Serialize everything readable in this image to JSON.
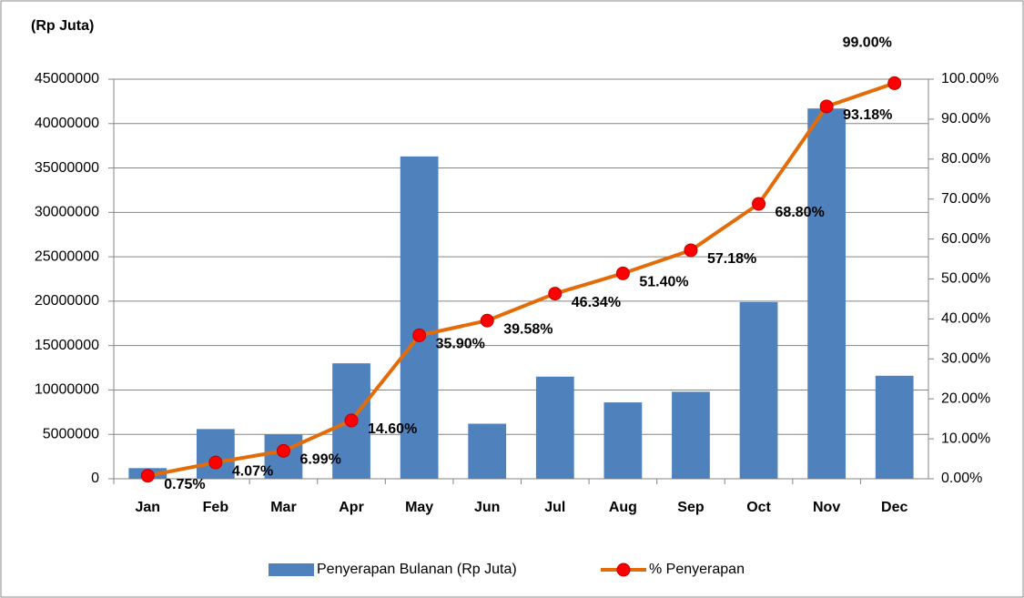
{
  "chart_data": {
    "type": "bar",
    "title": "(Rp Juta)",
    "categories": [
      "Jan",
      "Feb",
      "Mar",
      "Apr",
      "May",
      "Jun",
      "Jul",
      "Aug",
      "Sep",
      "Oct",
      "Nov",
      "Dec"
    ],
    "series": [
      {
        "name": "Penyerapan Bulanan (Rp Juta)",
        "type": "bar",
        "color": "#4f81bd",
        "values": [
          1200000,
          5600000,
          5000000,
          13000000,
          36300000,
          6200000,
          11500000,
          8600000,
          9800000,
          19900000,
          41700000,
          11600000
        ]
      },
      {
        "name": "% Penyerapan",
        "type": "line",
        "axis": "y2",
        "color": "#e36c09",
        "marker_color": "#ff0000",
        "values": [
          0.75,
          4.07,
          6.99,
          14.6,
          35.9,
          39.58,
          46.34,
          51.4,
          57.18,
          68.8,
          93.18,
          99.0
        ],
        "value_labels": [
          "0.75%",
          "4.07%",
          "6.99%",
          "14.60%",
          "35.90%",
          "39.58%",
          "46.34%",
          "51.40%",
          "57.18%",
          "68.80%",
          "93.18%",
          "99.00%"
        ]
      }
    ],
    "ylim": [
      0,
      45000000
    ],
    "yticks": [
      0,
      5000000,
      10000000,
      15000000,
      20000000,
      25000000,
      30000000,
      35000000,
      40000000,
      45000000
    ],
    "y2lim": [
      0,
      100
    ],
    "y2ticks": [
      {
        "value": 0,
        "label": "0.00%"
      },
      {
        "value": 10,
        "label": "10.00%"
      },
      {
        "value": 20,
        "label": "20.00%"
      },
      {
        "value": 30,
        "label": "30.00%"
      },
      {
        "value": 40,
        "label": "40.00%"
      },
      {
        "value": 50,
        "label": "50.00%"
      },
      {
        "value": 60,
        "label": "60.00%"
      },
      {
        "value": 70,
        "label": "70.00%"
      },
      {
        "value": 80,
        "label": "80.00%"
      },
      {
        "value": 90,
        "label": "90.00%"
      },
      {
        "value": 100,
        "label": "100.00%"
      }
    ],
    "grid": true,
    "legend": "bottom"
  }
}
